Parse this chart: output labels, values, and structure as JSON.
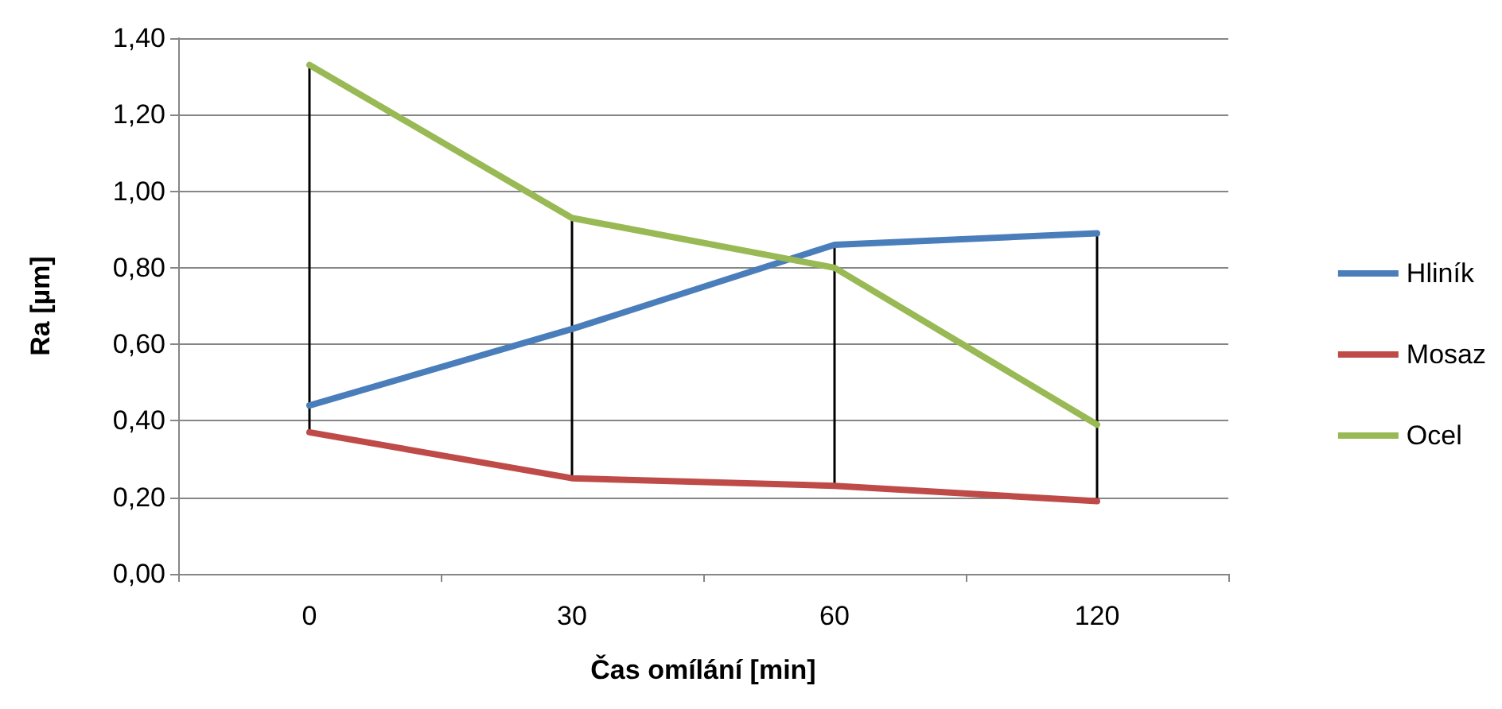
{
  "chart_data": {
    "type": "line",
    "xlabel": "Čas omílání [min]",
    "ylabel": "Ra [µm]",
    "categories": [
      "0",
      "30",
      "60",
      "120"
    ],
    "series": [
      {
        "type": "bar",
        "color": "#000000",
        "base": [
          0.37,
          0.25,
          0.23,
          0.19
        ],
        "values": [
          0.96,
          0.68,
          0.63,
          0.7
        ]
      },
      {
        "name": "Hliník",
        "color": "#4a7ebb",
        "values": [
          0.44,
          0.64,
          0.86,
          0.89
        ]
      },
      {
        "name": "Mosaz",
        "color": "#be4b48",
        "values": [
          0.37,
          0.25,
          0.23,
          0.19
        ]
      },
      {
        "name": "Ocel",
        "color": "#98b954",
        "values": [
          1.33,
          0.93,
          0.8,
          0.39
        ]
      }
    ],
    "ylim": [
      0,
      1.4
    ],
    "yticks": [
      {
        "value": 0,
        "label": "0,00"
      },
      {
        "value": 0.2,
        "label": "0,20"
      },
      {
        "value": 0.4,
        "label": "0,40"
      },
      {
        "value": 0.6,
        "label": "0,60"
      },
      {
        "value": 0.8,
        "label": "0,80"
      },
      {
        "value": 1.0,
        "label": "1,00"
      },
      {
        "value": 1.2,
        "label": "1,20"
      },
      {
        "value": 1.4,
        "label": "1,40"
      }
    ],
    "grid": "y",
    "legend": "right",
    "marker": "none",
    "line_style": "solid"
  }
}
